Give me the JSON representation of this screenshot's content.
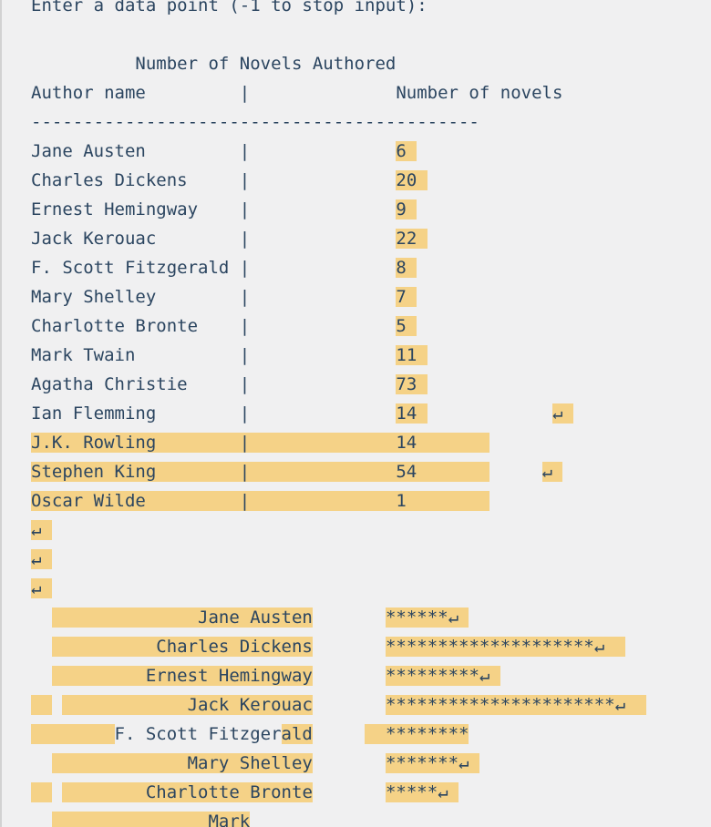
{
  "colors": {
    "background": "#f0f0f1",
    "text": "#2b4560",
    "highlight": "#f5d287",
    "left_border": "#d2d2d2"
  },
  "prompt": "Enter a data point (-1 to stop input):",
  "return_glyph": "↵",
  "table": {
    "title": "Number of Novels Authored",
    "columns": [
      "Author name",
      "Number of novels"
    ],
    "rows": [
      {
        "author": "Jane Austen",
        "novels": 6
      },
      {
        "author": "Charles Dickens",
        "novels": 20
      },
      {
        "author": "Ernest Hemingway",
        "novels": 9
      },
      {
        "author": "Jack Kerouac",
        "novels": 22
      },
      {
        "author": "F. Scott Fitzgerald",
        "novels": 8
      },
      {
        "author": "Mary Shelley",
        "novels": 7
      },
      {
        "author": "Charlotte Bronte",
        "novels": 5
      },
      {
        "author": "Mark Twain",
        "novels": 11
      },
      {
        "author": "Agatha Christie",
        "novels": 73
      },
      {
        "author": "Ian Flemming",
        "novels": 14
      },
      {
        "author": "J.K. Rowling",
        "novels": 14
      },
      {
        "author": "Stephen King",
        "novels": 54
      },
      {
        "author": "Oscar Wilde",
        "novels": 1
      }
    ]
  },
  "chart_data": {
    "type": "bar",
    "categories": [
      "Jane Austen",
      "Charles Dickens",
      "Ernest Hemingway",
      "Jack Kerouac",
      "F. Scott Fitzgerald",
      "Mary Shelley",
      "Charlotte Bronte"
    ],
    "values": [
      6,
      20,
      9,
      22,
      8,
      7,
      5
    ],
    "partial_last_category": "Mark",
    "title": "Number of Novels Authored",
    "bar_glyph": "*"
  },
  "terminal": {
    "lines": [
      [
        [
          "Enter a data point (-1 to stop input):",
          false
        ]
      ],
      [],
      [
        [
          "          Number of Novels Authored",
          false
        ]
      ],
      [
        [
          "Author name         |              Number of novels",
          false
        ]
      ],
      [
        [
          "-------------------------------------------",
          false
        ]
      ],
      [
        [
          "Jane Austen         |              ",
          false
        ],
        [
          "6 ",
          true
        ]
      ],
      [
        [
          "Charles Dickens     |              ",
          false
        ],
        [
          "20 ",
          true
        ]
      ],
      [
        [
          "Ernest Hemingway    |              ",
          false
        ],
        [
          "9 ",
          true
        ]
      ],
      [
        [
          "Jack Kerouac        |              ",
          false
        ],
        [
          "22 ",
          true
        ]
      ],
      [
        [
          "F. Scott Fitzgerald |              ",
          false
        ],
        [
          "8 ",
          true
        ]
      ],
      [
        [
          "Mary Shelley        |              ",
          false
        ],
        [
          "7 ",
          true
        ]
      ],
      [
        [
          "Charlotte Bronte    |              ",
          false
        ],
        [
          "5 ",
          true
        ]
      ],
      [
        [
          "Mark Twain          |              ",
          false
        ],
        [
          "11 ",
          true
        ]
      ],
      [
        [
          "Agatha Christie     |              ",
          false
        ],
        [
          "73 ",
          true
        ]
      ],
      [
        [
          "Ian Flemming        |              ",
          false
        ],
        [
          "14 ",
          true
        ],
        [
          "            ",
          false
        ],
        [
          "↵ ",
          true
        ]
      ],
      [
        [
          "J.K. Rowling        |              14       ",
          true
        ]
      ],
      [
        [
          "Stephen King        |              54       ",
          true
        ],
        [
          "     ",
          false
        ],
        [
          "↵ ",
          true
        ]
      ],
      [
        [
          "Oscar Wilde         |              1        ",
          true
        ]
      ],
      [
        [
          "↵ ",
          true
        ]
      ],
      [
        [
          "↵ ",
          true
        ]
      ],
      [
        [
          "↵ ",
          true
        ]
      ],
      [
        [
          "  ",
          false
        ],
        [
          "              Jane Austen",
          true
        ],
        [
          "       ",
          false
        ],
        [
          "******↵ ",
          true
        ]
      ],
      [
        [
          "  ",
          false
        ],
        [
          "          Charles Dickens",
          true
        ],
        [
          "       ",
          false
        ],
        [
          "********************↵  ",
          true
        ]
      ],
      [
        [
          "  ",
          false
        ],
        [
          "         Ernest Hemingway",
          true
        ],
        [
          "       ",
          false
        ],
        [
          "*********↵ ",
          true
        ]
      ],
      [
        [
          "  ",
          true
        ],
        [
          " ",
          false
        ],
        [
          "            Jack Kerouac",
          true
        ],
        [
          "       ",
          false
        ],
        [
          "**********************↵  ",
          true
        ]
      ],
      [
        [
          "        ",
          true
        ],
        [
          "F. Scott Fitzger",
          false
        ],
        [
          "ald",
          true
        ],
        [
          "     ",
          false
        ],
        [
          "  ********",
          true
        ]
      ],
      [
        [
          "  ",
          false
        ],
        [
          "             Mary Shelley",
          true
        ],
        [
          "       ",
          false
        ],
        [
          "*******↵ ",
          true
        ]
      ],
      [
        [
          "  ",
          true
        ],
        [
          " ",
          false
        ],
        [
          "        Charlotte Bronte",
          true
        ],
        [
          "       ",
          false
        ],
        [
          "*****↵ ",
          true
        ]
      ],
      [
        [
          "  ",
          false
        ],
        [
          "               Mark",
          true
        ]
      ]
    ]
  }
}
